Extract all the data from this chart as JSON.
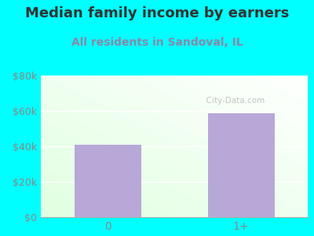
{
  "title": "Median family income by earners",
  "subtitle": "All residents in Sandoval, IL",
  "categories": [
    "0",
    "1+"
  ],
  "values": [
    41000,
    58500
  ],
  "bar_color": "#b8a8d8",
  "ylim": [
    0,
    80000
  ],
  "yticks": [
    0,
    20000,
    40000,
    60000,
    80000
  ],
  "ytick_labels": [
    "$0",
    "$20k",
    "$40k",
    "$60k",
    "$80k"
  ],
  "background_outer": "#00ffff",
  "plot_bg_color_top_right": "#f8fff8",
  "plot_bg_color_bottom_left": "#e8ffe8",
  "title_color": "#333333",
  "subtitle_color": "#8888aa",
  "title_fontsize": 13,
  "subtitle_fontsize": 10,
  "tick_color": "#888888",
  "watermark": "  City-Data.com",
  "watermark_color": "#bbbbbb"
}
